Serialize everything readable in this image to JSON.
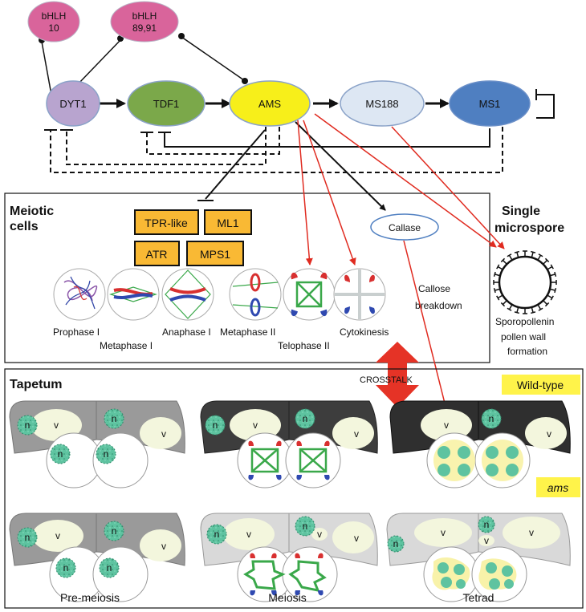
{
  "colors": {
    "bhlh": "#d9649b",
    "dyt1": "#b8a4cf",
    "tdf1": "#7ba84a",
    "ams": "#f7ef1a",
    "ms188": "#dde7f3",
    "ms1": "#4f7fc1",
    "gene_box": "#f9b934",
    "arrow_red": "#e02b20",
    "wildtype_label": "#fff34a",
    "nucleus": "#5ec3a0",
    "tapetum_dark": "#4a4a4a",
    "tapetum_grey": "#9a9a9a",
    "tapetum_light": "#d9d9d9"
  },
  "network": {
    "bhlh10": [
      "bHLH",
      "10"
    ],
    "bhlh8991": [
      "bHLH",
      "89,91"
    ],
    "dyt1": "DYT1",
    "tdf1": "TDF1",
    "ams": "AMS",
    "ms188": "MS188",
    "ms1": "MS1"
  },
  "meiotic": {
    "title_lines": [
      "Meiotic",
      "cells"
    ],
    "genes": [
      "TPR-like",
      "ML1",
      "ATR",
      "MPS1"
    ],
    "callase": "Callase",
    "callose_lines": [
      "Callose",
      "breakdown"
    ],
    "stages": [
      "Prophase I",
      "Metaphase I",
      "Anaphase I",
      "Metaphase II",
      "Telophase II",
      "Cytokinesis"
    ]
  },
  "microspore": {
    "title_lines": [
      "Single",
      "microspore"
    ],
    "caption_lines": [
      "Sporopollenin",
      "pollen wall",
      "formation"
    ]
  },
  "crosstalk": "CROSSTALK",
  "tapetum": {
    "title": "Tapetum",
    "wildtype": "Wild-type",
    "ams_label": "ams",
    "nucleus_label": "n",
    "vacuole_label": "v",
    "stages": [
      "Pre-meiosis",
      "Meiosis",
      "Tetrad"
    ]
  }
}
